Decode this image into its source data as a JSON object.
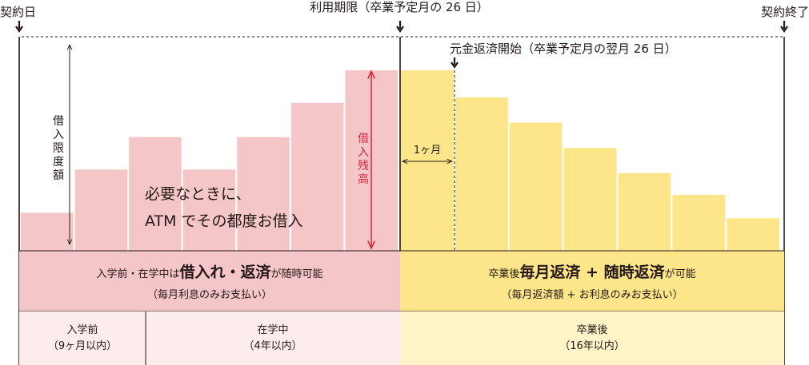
{
  "markers": {
    "contract_start": "契約日",
    "borrow_deadline": "利用期限（卒業予定月の 26 日）",
    "contract_end": "契約終了",
    "repay_start": "元金返済開始（卒業予定月の翌月 26 日）"
  },
  "labels": {
    "credit_limit": "借入限度額",
    "balance": "借入残高",
    "one_month": "1ヶ月",
    "note_line1": "必要なときに、",
    "note_line2": "ATM でその都度お借入"
  },
  "bands": {
    "study_prefix": "入学前・在学中は",
    "study_bold": "借入れ・返済",
    "study_suffix": "が随時可能",
    "study_sub": "（毎月利息のみお支払い）",
    "grad_prefix": "卒業後",
    "grad_bold": "毎月返済 + 随時返済",
    "grad_suffix": "が可能",
    "grad_sub": "（毎月返済額 + お利息のみお支払い）"
  },
  "periods": [
    {
      "name": "入学前",
      "duration": "（9ヶ月以内）"
    },
    {
      "name": "在学中",
      "duration": "（4年以内）"
    },
    {
      "name": "卒業後",
      "duration": "（16年以内）"
    }
  ],
  "colors": {
    "borrow_fill": "#f5c6c8",
    "repay_fill": "#fde68a",
    "study_band": "#f5c6c8",
    "grad_band": "#fde68a",
    "study_period": "#fdecec",
    "grad_period": "#fef4c8",
    "balance_arrow": "#d7263d",
    "line": "#231815"
  },
  "chart_data": {
    "type": "bar",
    "series": [
      {
        "name": "",
        "phase": "borrow",
        "values": [
          0.21,
          0.45,
          0.63,
          0.45,
          0.63,
          0.82,
          1.0
        ]
      },
      {
        "name": "",
        "phase": "repay",
        "values": [
          1.0,
          0.85,
          0.71,
          0.57,
          0.43,
          0.31,
          0.18
        ]
      }
    ],
    "ylim": [
      0,
      1
    ],
    "grid": false
  }
}
